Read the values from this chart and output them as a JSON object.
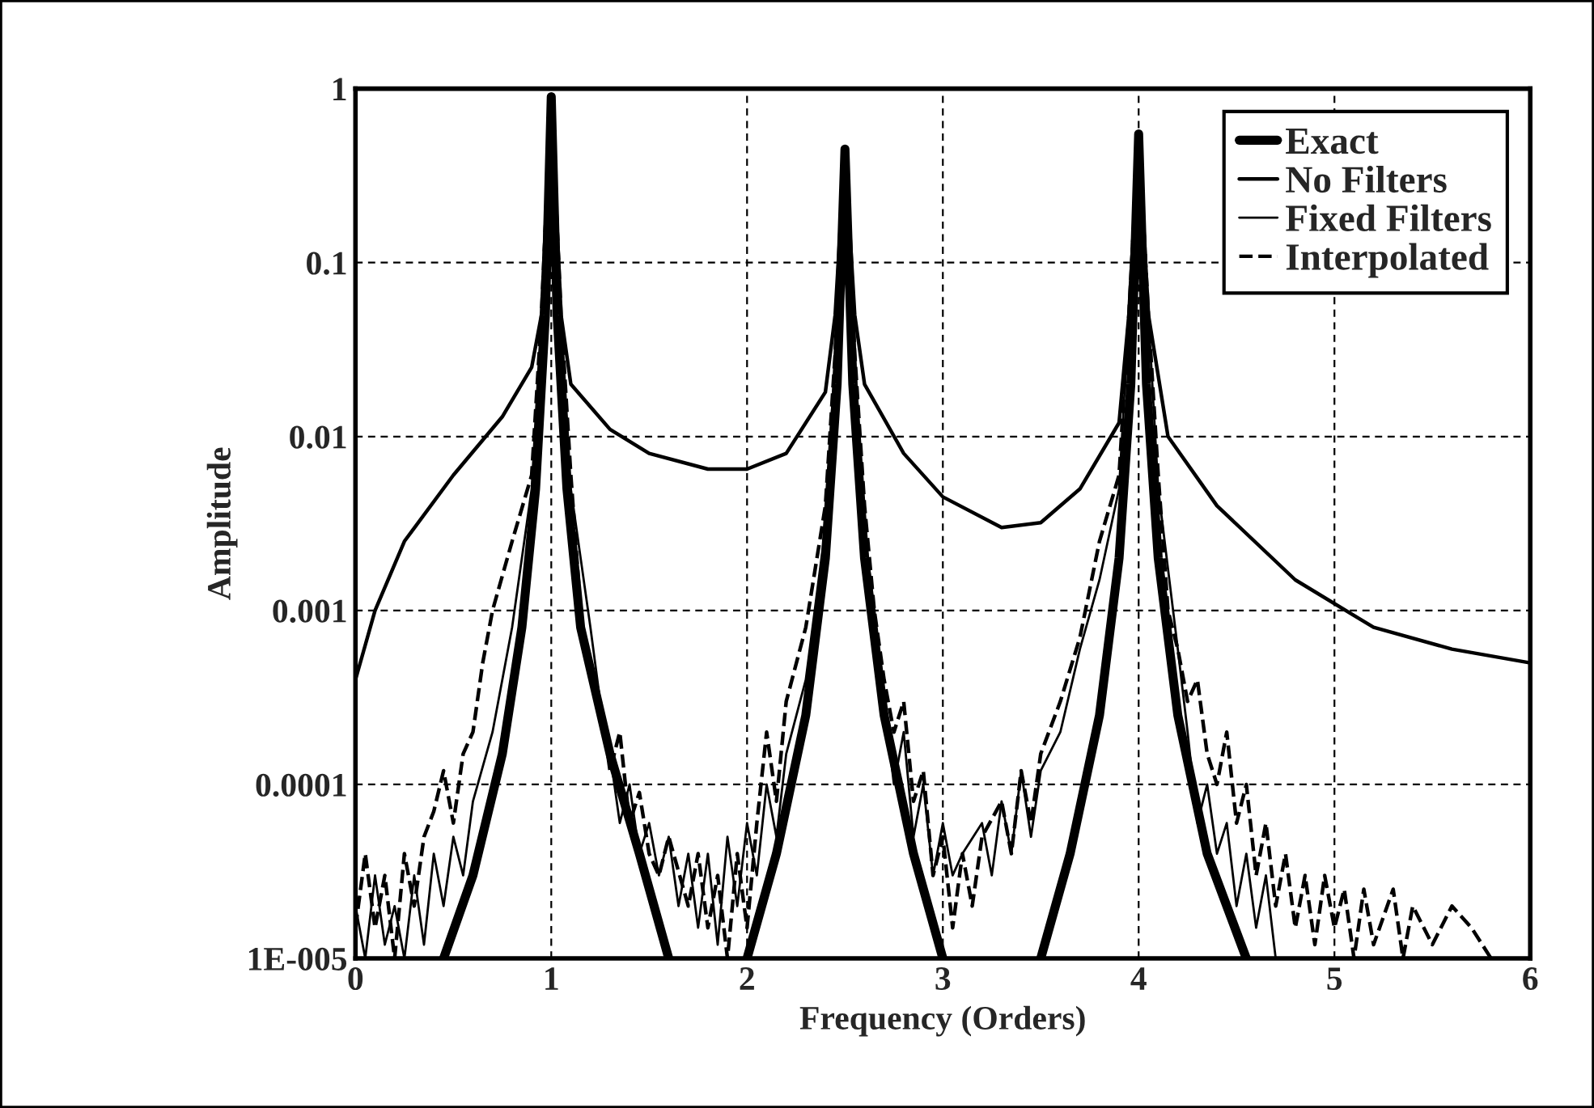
{
  "chart_data": {
    "type": "line",
    "xlabel": "Frequency (Orders)",
    "ylabel": "Amplitude",
    "log": "y",
    "xlim": [
      0,
      6
    ],
    "xticks": [
      0,
      1,
      2,
      3,
      4,
      5,
      6
    ],
    "ylim": [
      1e-05,
      1
    ],
    "yticks": [
      {
        "value": 1e-05,
        "label": "1E-005"
      },
      0.0001,
      0.001,
      0.01,
      0.1,
      1
    ],
    "grid": true,
    "legend": "top right",
    "marker": "none",
    "series": [
      {
        "name": "Exact",
        "color": "#000000",
        "line_style": "solid",
        "x": [
          0.45,
          0.6,
          0.75,
          0.85,
          0.92,
          0.97,
          1.0,
          1.03,
          1.08,
          1.15,
          1.3,
          1.45,
          1.6,
          1.8,
          2.0,
          2.15,
          2.3,
          2.4,
          2.46,
          2.5,
          2.54,
          2.6,
          2.7,
          2.85,
          3.0,
          3.25,
          3.5,
          3.65,
          3.8,
          3.9,
          3.96,
          4.0,
          4.04,
          4.1,
          4.2,
          4.35,
          4.55
        ],
        "values": [
          1e-05,
          3e-05,
          0.00015,
          0.0008,
          0.005,
          0.05,
          0.9,
          0.05,
          0.005,
          0.0008,
          0.00015,
          4e-05,
          1e-05,
          null,
          1e-05,
          4e-05,
          0.00025,
          0.002,
          0.02,
          0.45,
          0.02,
          0.002,
          0.00025,
          4e-05,
          1e-05,
          null,
          1e-05,
          4e-05,
          0.00025,
          0.002,
          0.02,
          0.55,
          0.02,
          0.002,
          0.00025,
          4e-05,
          1e-05
        ]
      },
      {
        "name": "No Filters",
        "color": "#000000",
        "line_style": "solid",
        "x": [
          0,
          0.1,
          0.25,
          0.5,
          0.75,
          0.9,
          0.95,
          1.0,
          1.05,
          1.1,
          1.3,
          1.5,
          1.8,
          2.0,
          2.2,
          2.4,
          2.45,
          2.5,
          2.55,
          2.6,
          2.8,
          3.0,
          3.3,
          3.5,
          3.7,
          3.9,
          3.95,
          4.0,
          4.05,
          4.15,
          4.4,
          4.8,
          5.2,
          5.6,
          6.0
        ],
        "values": [
          0.0004,
          0.001,
          0.0025,
          0.006,
          0.013,
          0.025,
          0.05,
          0.9,
          0.05,
          0.02,
          0.011,
          0.008,
          0.0065,
          0.0065,
          0.008,
          0.018,
          0.05,
          0.45,
          0.05,
          0.02,
          0.008,
          0.0045,
          0.003,
          0.0032,
          0.005,
          0.012,
          0.05,
          0.55,
          0.05,
          0.01,
          0.004,
          0.0015,
          0.0008,
          0.0006,
          0.0005
        ]
      },
      {
        "name": "Fixed Filters",
        "color": "#000000",
        "line_style": "solid",
        "x": [
          0,
          0.05,
          0.1,
          0.15,
          0.2,
          0.25,
          0.3,
          0.35,
          0.4,
          0.45,
          0.5,
          0.55,
          0.6,
          0.7,
          0.8,
          0.9,
          0.95,
          1.0,
          1.05,
          1.1,
          1.2,
          1.25,
          1.3,
          1.35,
          1.4,
          1.45,
          1.5,
          1.55,
          1.6,
          1.65,
          1.7,
          1.75,
          1.8,
          1.85,
          1.9,
          1.95,
          2.0,
          2.05,
          2.1,
          2.15,
          2.2,
          2.3,
          2.4,
          2.45,
          2.5,
          2.55,
          2.6,
          2.7,
          2.75,
          2.8,
          2.85,
          2.9,
          2.95,
          3.0,
          3.05,
          3.1,
          3.2,
          3.25,
          3.3,
          3.35,
          3.4,
          3.45,
          3.5,
          3.6,
          3.7,
          3.8,
          3.9,
          3.95,
          4.0,
          4.05,
          4.1,
          4.2,
          4.25,
          4.3,
          4.35,
          4.4,
          4.45,
          4.5,
          4.55,
          4.6,
          4.65,
          4.7
        ],
        "values": [
          2e-05,
          1e-05,
          3e-05,
          1.2e-05,
          2e-05,
          1e-05,
          3e-05,
          1.2e-05,
          4e-05,
          2e-05,
          5e-05,
          3e-05,
          8e-05,
          0.0002,
          0.0008,
          0.005,
          0.05,
          0.9,
          0.05,
          0.005,
          0.0008,
          0.0003,
          0.00015,
          6e-05,
          0.0001,
          4e-05,
          6e-05,
          3e-05,
          5e-05,
          2e-05,
          4e-05,
          1.5e-05,
          4e-05,
          1.2e-05,
          5e-05,
          2e-05,
          6e-05,
          3e-05,
          0.0001,
          5e-05,
          0.00015,
          0.0004,
          0.003,
          0.03,
          0.45,
          0.03,
          0.003,
          0.0003,
          0.0001,
          0.0002,
          5e-05,
          0.0001,
          3e-05,
          6e-05,
          3e-05,
          4e-05,
          6e-05,
          3e-05,
          8e-05,
          4e-05,
          0.00012,
          5e-05,
          0.00012,
          0.0002,
          0.0006,
          0.0015,
          0.005,
          0.05,
          0.55,
          0.05,
          0.005,
          0.0006,
          0.0002,
          6e-05,
          0.0001,
          4e-05,
          6e-05,
          2e-05,
          4e-05,
          1.5e-05,
          3e-05,
          1e-05
        ]
      },
      {
        "name": "Interpolated",
        "color": "#000000",
        "line_style": "dashed",
        "x": [
          0,
          0.05,
          0.1,
          0.15,
          0.2,
          0.25,
          0.3,
          0.35,
          0.4,
          0.45,
          0.5,
          0.55,
          0.6,
          0.65,
          0.7,
          0.8,
          0.9,
          0.95,
          1.0,
          1.05,
          1.1,
          1.15,
          1.2,
          1.25,
          1.3,
          1.35,
          1.4,
          1.45,
          1.5,
          1.55,
          1.6,
          1.7,
          1.75,
          1.8,
          1.85,
          1.9,
          1.95,
          2.0,
          2.05,
          2.1,
          2.15,
          2.2,
          2.3,
          2.4,
          2.45,
          2.5,
          2.55,
          2.6,
          2.65,
          2.7,
          2.75,
          2.8,
          2.85,
          2.9,
          2.95,
          3.0,
          3.05,
          3.1,
          3.15,
          3.2,
          3.3,
          3.35,
          3.4,
          3.45,
          3.5,
          3.6,
          3.7,
          3.8,
          3.9,
          3.95,
          4.0,
          4.05,
          4.1,
          4.15,
          4.2,
          4.25,
          4.3,
          4.35,
          4.4,
          4.45,
          4.5,
          4.55,
          4.6,
          4.65,
          4.7,
          4.75,
          4.8,
          4.85,
          4.9,
          4.95,
          5.0,
          5.05,
          5.1,
          5.15,
          5.2,
          5.3,
          5.35,
          5.4,
          5.5,
          5.6,
          5.7,
          5.8
        ],
        "values": [
          1.5e-05,
          4e-05,
          1.5e-05,
          3e-05,
          1e-05,
          4e-05,
          2e-05,
          5e-05,
          7e-05,
          0.00012,
          6e-05,
          0.00015,
          0.0002,
          0.0005,
          0.001,
          0.0025,
          0.006,
          0.05,
          0.9,
          0.05,
          0.006,
          0.001,
          0.0004,
          0.0003,
          0.00012,
          0.0002,
          6e-05,
          9e-05,
          4e-05,
          3e-05,
          5e-05,
          2e-05,
          4e-05,
          1.5e-05,
          3e-05,
          1e-05,
          4e-05,
          1.5e-05,
          6e-05,
          0.0002,
          8e-05,
          0.0003,
          0.0008,
          0.004,
          0.03,
          0.45,
          0.03,
          0.004,
          0.001,
          0.0004,
          0.0002,
          0.0003,
          8e-05,
          0.00012,
          3e-05,
          5e-05,
          1.5e-05,
          4e-05,
          2e-05,
          5e-05,
          8e-05,
          4e-05,
          0.00012,
          6e-05,
          0.00015,
          0.0003,
          0.0007,
          0.0025,
          0.006,
          0.05,
          0.55,
          0.05,
          0.006,
          0.001,
          0.0006,
          0.0003,
          0.0004,
          0.00015,
          0.0001,
          0.0002,
          6e-05,
          0.0001,
          3e-05,
          6e-05,
          2e-05,
          4e-05,
          1.5e-05,
          3e-05,
          1.2e-05,
          3e-05,
          1.5e-05,
          2.5e-05,
          1e-05,
          2.5e-05,
          1.2e-05,
          2.5e-05,
          1e-05,
          2e-05,
          1.2e-05,
          2e-05,
          1.5e-05,
          1e-05
        ]
      }
    ]
  }
}
